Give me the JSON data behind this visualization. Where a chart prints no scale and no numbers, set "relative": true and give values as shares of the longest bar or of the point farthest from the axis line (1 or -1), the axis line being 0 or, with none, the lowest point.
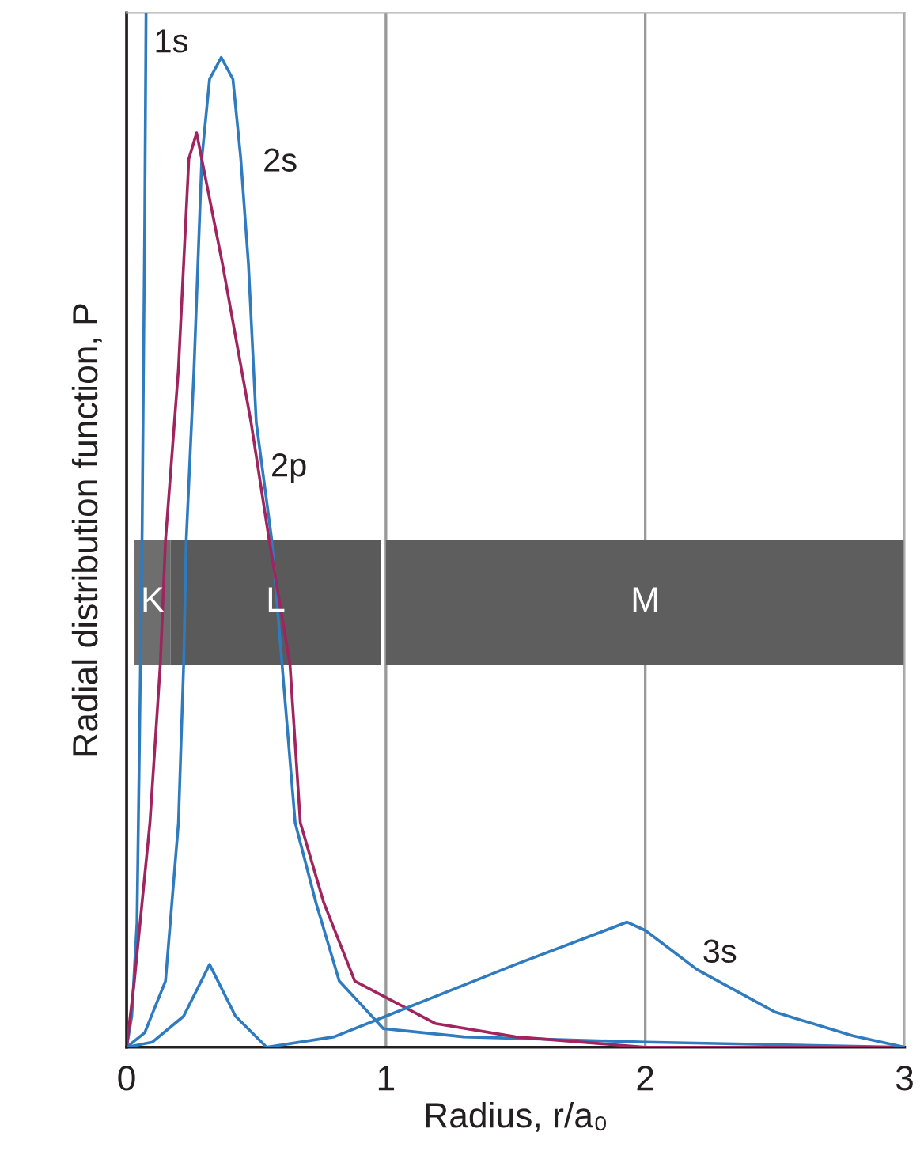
{
  "chart_data": {
    "type": "line",
    "relative": true,
    "xlabel": "Radius, r/a₀",
    "ylabel": "Radial distribution function, P",
    "xlim": [
      0,
      3
    ],
    "xticks": [
      0,
      1,
      2,
      3
    ],
    "grid": "x",
    "legend": false,
    "tick_labels": "x",
    "series": [
      {
        "name": "1s",
        "color": "#2f7bbf",
        "x": [
          0,
          0.02,
          0.04,
          0.05,
          0.06,
          0.07,
          0.075
        ],
        "values": [
          0,
          0.03,
          0.12,
          0.3,
          0.5,
          0.8,
          1.0
        ]
      },
      {
        "name": "2s",
        "color": "#2f7bbf",
        "x": [
          0,
          0.07,
          0.15,
          0.2,
          0.22,
          0.23,
          0.26,
          0.29,
          0.32,
          0.365,
          0.41,
          0.44,
          0.47,
          0.5,
          0.56,
          0.65,
          0.73,
          0.82,
          0.99,
          1.3,
          2.0,
          3.0
        ],
        "values": [
          0,
          0.014,
          0.064,
          0.217,
          0.37,
          0.49,
          0.656,
          0.859,
          0.936,
          0.957,
          0.936,
          0.86,
          0.757,
          0.604,
          0.49,
          0.217,
          0.14,
          0.064,
          0.018,
          0.01,
          0.005,
          0
        ]
      },
      {
        "name": "2p",
        "color": "#a0245e",
        "x": [
          0,
          0.03,
          0.09,
          0.13,
          0.15,
          0.2,
          0.24,
          0.27,
          0.37,
          0.48,
          0.55,
          0.63,
          0.67,
          0.76,
          0.88,
          1.19,
          1.5,
          2.0,
          3.0
        ],
        "values": [
          0,
          0.064,
          0.217,
          0.37,
          0.49,
          0.656,
          0.859,
          0.884,
          0.757,
          0.604,
          0.49,
          0.37,
          0.217,
          0.14,
          0.064,
          0.023,
          0.01,
          0,
          0
        ]
      },
      {
        "name": "3s",
        "color": "#2f7bbf",
        "x": [
          0,
          0.1,
          0.22,
          0.32,
          0.42,
          0.54,
          0.8,
          1.0,
          1.5,
          1.93,
          2.0,
          2.2,
          2.5,
          2.8,
          3.0
        ],
        "values": [
          0,
          0.005,
          0.03,
          0.08,
          0.03,
          0,
          0.01,
          0.03,
          0.08,
          0.121,
          0.113,
          0.075,
          0.034,
          0.011,
          0
        ]
      }
    ],
    "bands": [
      {
        "axis": "x",
        "from": 0.03,
        "to": 0.17,
        "label": "K",
        "color": "#6e6e6e"
      },
      {
        "axis": "x",
        "from": 0.17,
        "to": 0.98,
        "label": "L",
        "color": "#5a5a5a"
      },
      {
        "axis": "x",
        "from": 1.0,
        "to": 3.0,
        "label": "M",
        "color": "#5e5e5e"
      }
    ]
  }
}
